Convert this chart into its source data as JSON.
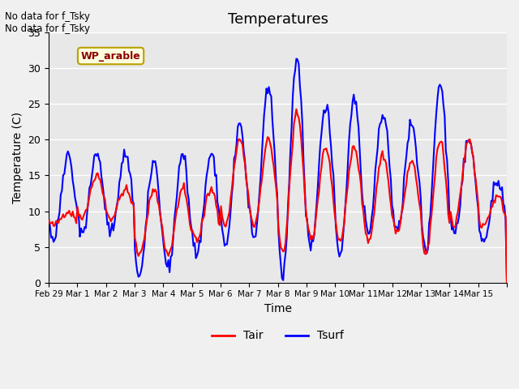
{
  "title": "Temperatures",
  "xlabel": "Time",
  "ylabel": "Temperature (C)",
  "ylim": [
    0,
    35
  ],
  "annotation_text": "No data for f_Tsky\nNo data for f_Tsky",
  "wp_label": "WP_arable",
  "legend_entries": [
    "Tair",
    "Tsurf"
  ],
  "legend_colors": [
    "red",
    "blue"
  ],
  "xtick_positions": [
    0,
    1,
    2,
    3,
    4,
    5,
    6,
    7,
    8,
    9,
    10,
    11,
    12,
    13,
    14,
    15,
    16
  ],
  "xtick_labels": [
    "Feb 29",
    "Mar 1",
    "Mar 2",
    "Mar 3",
    "Mar 4",
    "Mar 5",
    "Mar 6",
    "Mar 7",
    "Mar 8",
    "Mar 9",
    "Mar 10",
    "Mar 11",
    "Mar 12",
    "Mar 13",
    "Mar 14",
    "Mar 15",
    ""
  ],
  "ytick_vals": [
    0,
    5,
    10,
    15,
    20,
    25,
    30,
    35
  ],
  "ytick_labels": [
    "0",
    "5",
    "10",
    "15",
    "20",
    "25",
    "30",
    "35"
  ],
  "background_color": "#f0f0f0",
  "plot_bg_color": "#e8e8e8",
  "tair_color": "red",
  "tsurf_color": "blue",
  "linewidth": 1.5,
  "day_data": [
    [
      8,
      10,
      6,
      18
    ],
    [
      9,
      15,
      7,
      18
    ],
    [
      9,
      13,
      7,
      18
    ],
    [
      4,
      13,
      1,
      17
    ],
    [
      4,
      13,
      2,
      18
    ],
    [
      6,
      13,
      4,
      18
    ],
    [
      8,
      20,
      5,
      22
    ],
    [
      8,
      20,
      6,
      27
    ],
    [
      4,
      24,
      1,
      31
    ],
    [
      6,
      19,
      5,
      25
    ],
    [
      6,
      19,
      4,
      26
    ],
    [
      6,
      18,
      7,
      24
    ],
    [
      7,
      17,
      7,
      22
    ],
    [
      4,
      20,
      4,
      28
    ],
    [
      8,
      20,
      7,
      20
    ],
    [
      8,
      12,
      6,
      14
    ]
  ]
}
